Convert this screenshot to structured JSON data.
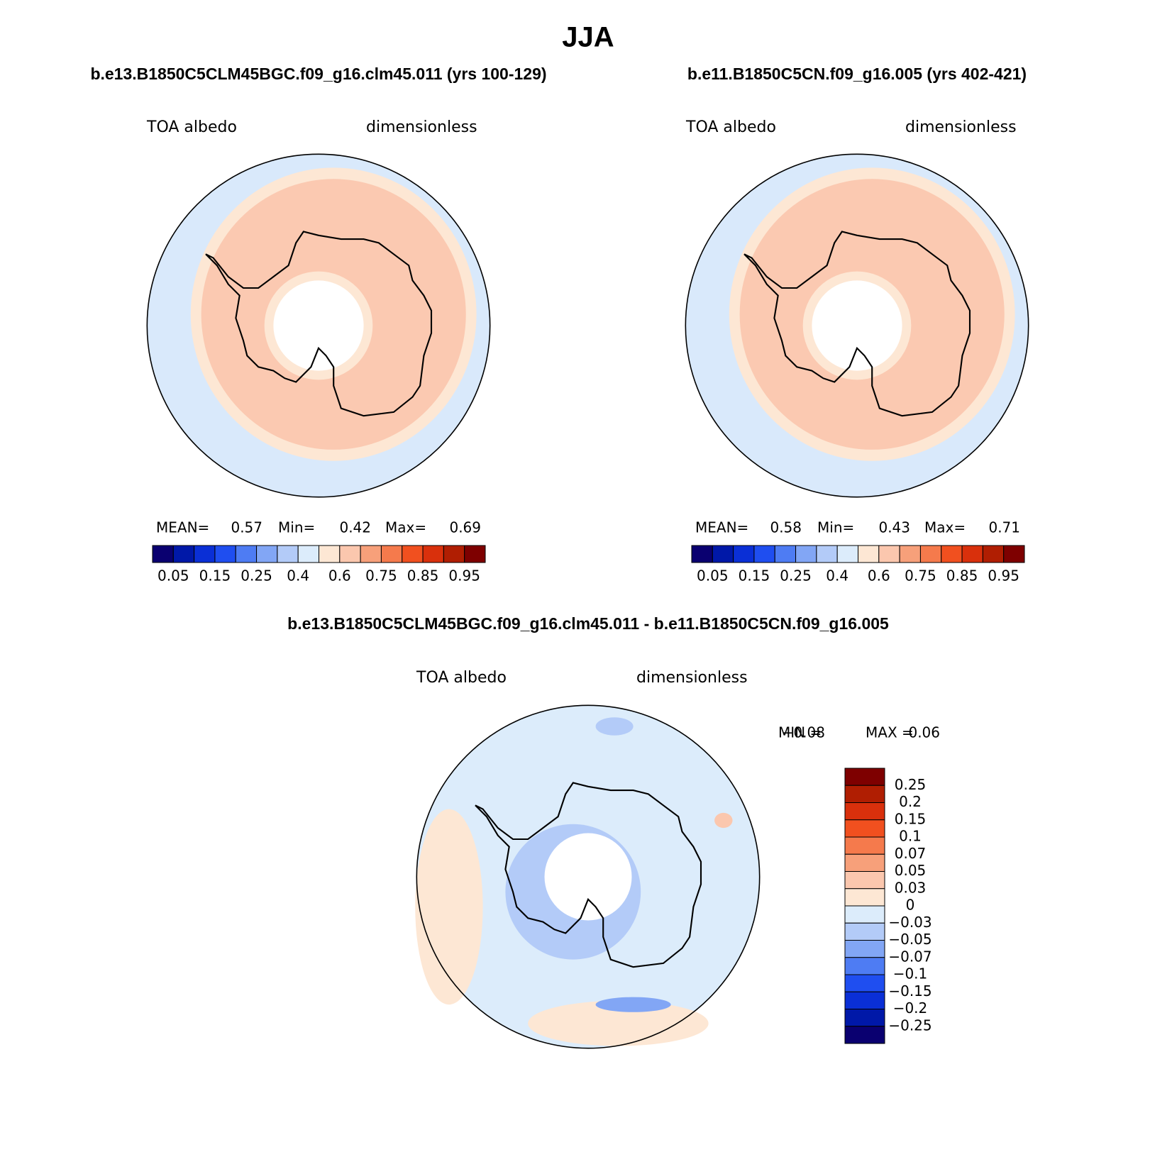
{
  "title": "JJA",
  "panels": [
    {
      "subtitle": "b.e13.B1850C5CLM45BGC.f09_g16.clm45.011 (yrs 100-129)",
      "variable": "TOA albedo",
      "units": "dimensionless",
      "stats": [
        "MEAN=",
        "0.57",
        "Min=",
        "0.42",
        "Max=",
        "0.69"
      ],
      "colorbar": {
        "colors": [
          "#0a0070",
          "#0018a8",
          "#0a2fd6",
          "#1f4ef0",
          "#4e7cf3",
          "#82a6f5",
          "#b3cbf8",
          "#dcecfb",
          "#fde7d4",
          "#fbc7ae",
          "#f7a07a",
          "#f57a4c",
          "#f1501f",
          "#d9300c",
          "#b01e02",
          "#7e0000"
        ],
        "labels": [
          "0.05",
          "0.15",
          "0.25",
          "0.4",
          "0.6",
          "0.75",
          "0.85",
          "0.95"
        ]
      }
    },
    {
      "subtitle": "b.e11.B1850C5CN.f09_g16.005 (yrs 402-421)",
      "variable": "TOA albedo",
      "units": "dimensionless",
      "stats": [
        "MEAN=",
        "0.58",
        "Min=",
        "0.43",
        "Max=",
        "0.71"
      ],
      "colorbar": {
        "colors": [
          "#0a0070",
          "#0018a8",
          "#0a2fd6",
          "#1f4ef0",
          "#4e7cf3",
          "#82a6f5",
          "#b3cbf8",
          "#dcecfb",
          "#fde7d4",
          "#fbc7ae",
          "#f7a07a",
          "#f57a4c",
          "#f1501f",
          "#d9300c",
          "#b01e02",
          "#7e0000"
        ],
        "labels": [
          "0.05",
          "0.15",
          "0.25",
          "0.4",
          "0.6",
          "0.75",
          "0.85",
          "0.95"
        ]
      }
    },
    {
      "subtitle": "b.e13.B1850C5CLM45BGC.f09_g16.clm45.011 - b.e11.B1850C5CN.f09_g16.005",
      "variable": "TOA albedo",
      "units": "dimensionless",
      "stats": [
        "MIN =",
        "−0.08",
        "MAX =",
        "0.06"
      ],
      "colorbar": {
        "colors": [
          "#7e0000",
          "#b01e02",
          "#d9300c",
          "#f1501f",
          "#f57a4c",
          "#f7a07a",
          "#fbc7ae",
          "#fde7d4",
          "#dcecfb",
          "#b3cbf8",
          "#82a6f5",
          "#4e7cf3",
          "#1f4ef0",
          "#0a2fd6",
          "#0018a8",
          "#0a0070"
        ],
        "labels": [
          "0.25",
          "0.2",
          "0.15",
          "0.1",
          "0.07",
          "0.05",
          "0.03",
          "0",
          "−0.03",
          "−0.05",
          "−0.07",
          "−0.1",
          "−0.15",
          "−0.2",
          "−0.25"
        ]
      }
    }
  ]
}
